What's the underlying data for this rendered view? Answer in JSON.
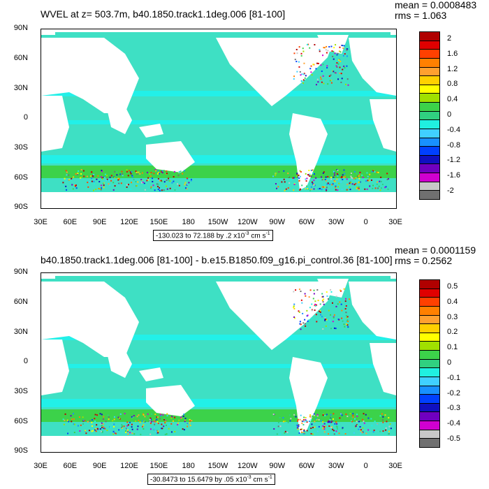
{
  "panels": [
    {
      "title": "WVEL at z= 503.7m, b40.1850.track1.1deg.006 [81-100]",
      "mean": "mean = 0.0008483",
      "rms": "rms = 1.063",
      "range_text": "-130.023 to 72.188 by .2 x10",
      "range_exp": "-3",
      "range_unit": " cm s",
      "range_unit_exp": "-1",
      "colorbar_labels": [
        "2",
        "1.6",
        "1.2",
        "0.8",
        "0.4",
        "0",
        "-0.4",
        "-0.8",
        "-1.2",
        "-1.6",
        "-2"
      ]
    },
    {
      "title": "b40.1850.track1.1deg.006 [81-100] - b.e15.B1850.f09_g16.pi_control.36 [81-100]",
      "mean": "mean = 0.0001159",
      "rms": "rms = 0.2562",
      "range_text": "-30.8473 to 15.6479 by .05 x10",
      "range_exp": "-3",
      "range_unit": " cm s",
      "range_unit_exp": "-1",
      "colorbar_labels": [
        "0.5",
        "0.4",
        "0.3",
        "0.2",
        "0.1",
        "0",
        "-0.1",
        "-0.2",
        "-0.3",
        "-0.4",
        "-0.5"
      ]
    }
  ],
  "lat_ticks": [
    "90N",
    "60N",
    "30N",
    "0",
    "30S",
    "60S",
    "90S"
  ],
  "lon_ticks": [
    "30E",
    "60E",
    "90E",
    "120E",
    "150E",
    "180",
    "150W",
    "120W",
    "90W",
    "60W",
    "30W",
    "0",
    "30E"
  ],
  "colors": {
    "ocean_base": "#3ee0c4",
    "ocean_light": "#22f0e8",
    "green": "#3cd24a",
    "land": "#ffffff",
    "palette": [
      "#b00000",
      "#e00000",
      "#ff4000",
      "#ff8000",
      "#ffa030",
      "#ffd000",
      "#ffff00",
      "#a0e000",
      "#3cd24a",
      "#30d080",
      "#20f0e0",
      "#40d0ff",
      "#1890ff",
      "#0040ff",
      "#1010c0",
      "#7000c0",
      "#d000d0",
      "#c8c8c8",
      "#707070"
    ]
  }
}
